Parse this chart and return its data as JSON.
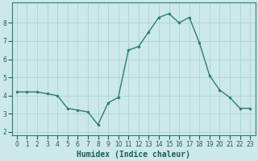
{
  "x": [
    0,
    1,
    2,
    3,
    4,
    5,
    6,
    7,
    8,
    9,
    10,
    11,
    12,
    13,
    14,
    15,
    16,
    17,
    18,
    19,
    20,
    21,
    22,
    23
  ],
  "y": [
    4.2,
    4.2,
    4.2,
    4.1,
    4.0,
    3.3,
    3.2,
    3.1,
    2.4,
    3.6,
    3.9,
    6.5,
    6.7,
    7.5,
    8.3,
    8.5,
    8.0,
    8.3,
    6.9,
    5.1,
    4.3,
    3.9,
    3.3,
    3.3
  ],
  "line_color": "#2e7d6e",
  "marker_color": "#2e7d6e",
  "bg_color": "#cce8e8",
  "grid_color": "#aad4d4",
  "xlabel": "Humidex (Indice chaleur)",
  "ylim": [
    1.8,
    9.1
  ],
  "xlim": [
    -0.5,
    23.5
  ],
  "yticks": [
    2,
    3,
    4,
    5,
    6,
    7,
    8
  ],
  "xticks": [
    0,
    1,
    2,
    3,
    4,
    5,
    6,
    7,
    8,
    9,
    10,
    11,
    12,
    13,
    14,
    15,
    16,
    17,
    18,
    19,
    20,
    21,
    22,
    23
  ],
  "tick_fontsize": 5.5,
  "xlabel_fontsize": 7.0,
  "line_width": 1.0,
  "marker_size": 2.2
}
